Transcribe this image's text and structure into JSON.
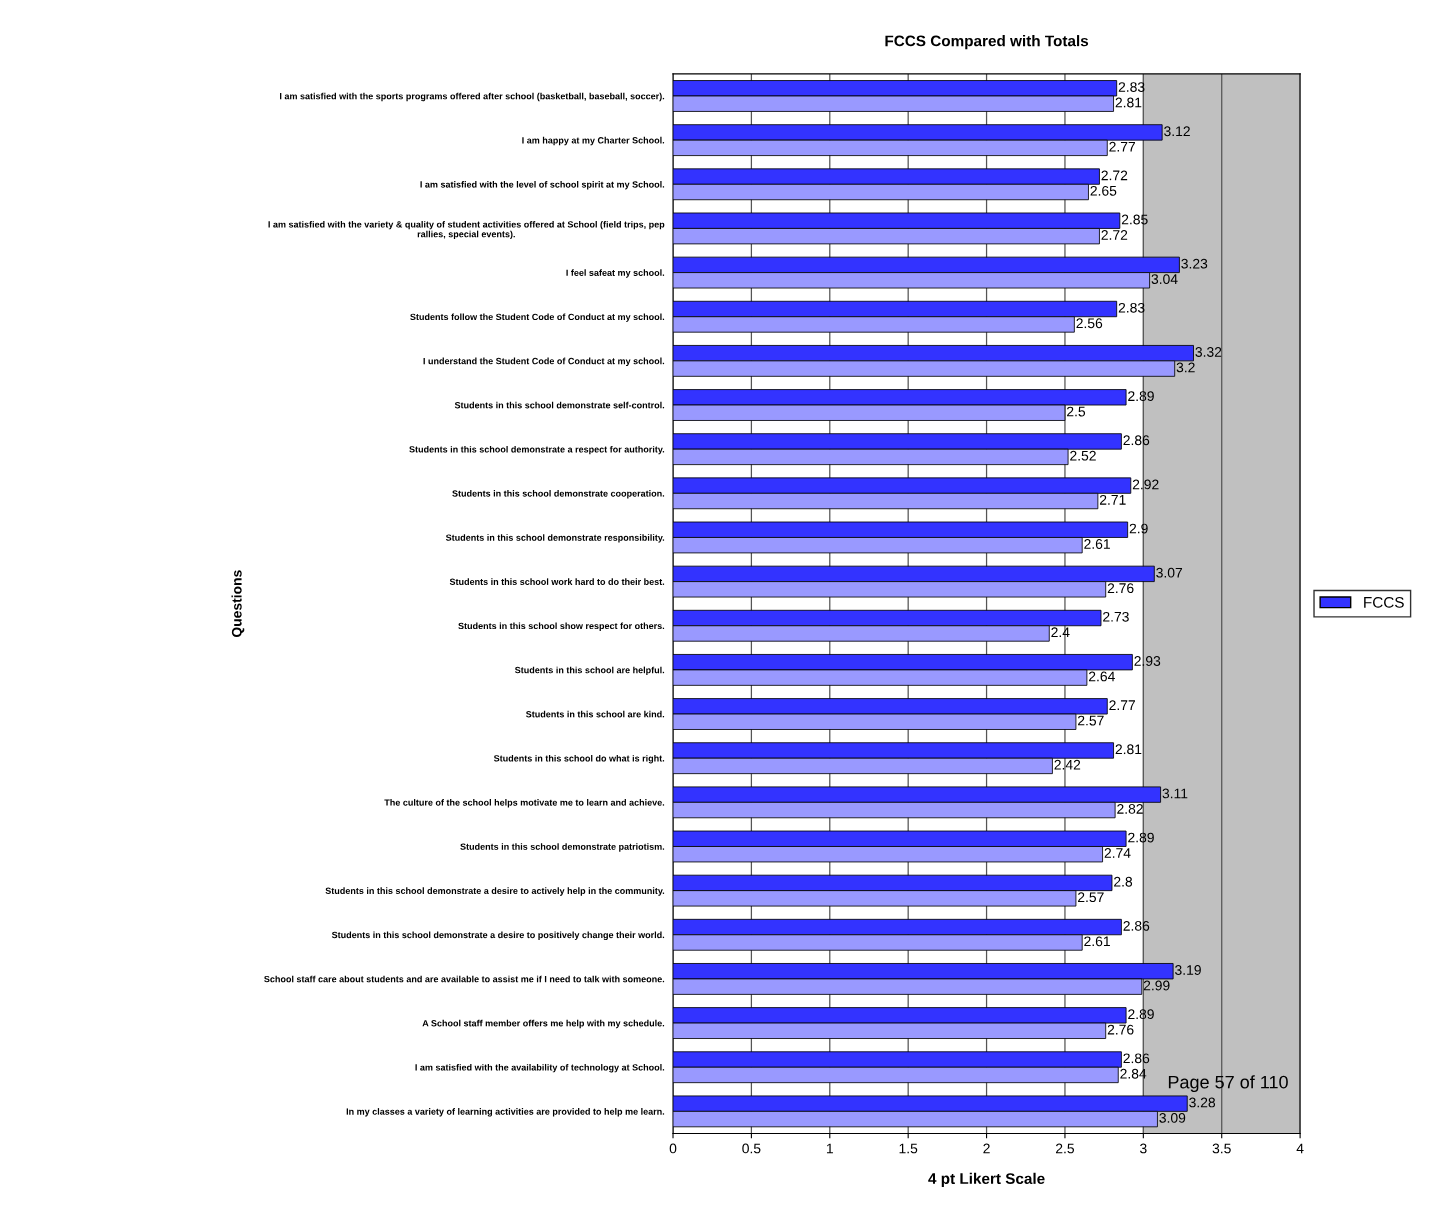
{
  "chart_data": {
    "type": "bar",
    "orientation": "horizontal",
    "title": "FCCS Compared with Totals",
    "xlabel": "4 pt Likert Scale",
    "ylabel": "Questions",
    "categories": [
      "I am satisfied with the sports programs offered after school (basketball, baseball, soccer).",
      "I am happy at my Charter School.",
      "I am satisfied with the level of school spirit at my School.",
      "I am satisfied with the variety & quality of student activities offered at School (field trips, pep\nrallies, special events).",
      "I feel safeat my school.",
      "Students follow the Student Code of Conduct at my school.",
      "I understand the Student Code of Conduct at my school.",
      "Students in this school demonstrate self-control.",
      "Students in this school demonstrate a respect for authority.",
      "Students in this school demonstrate cooperation.",
      "Students in this school demonstrate responsibility.",
      "Students in this school work hard to do their best.",
      "Students in this school show respect for others.",
      "Students in this school are helpful.",
      "Students in this school are kind.",
      "Students in this school do what is right.",
      "The culture of the school helps motivate me to learn and achieve.",
      "Students in this school demonstrate patriotism.",
      "Students in this school demonstrate a desire to actively help in the community.",
      "Students in this school demonstrate a desire to positively change their world.",
      "School staff care about students and are available to assist me if I need to talk with someone.",
      "A School staff member offers me help with my schedule.",
      "I am satisfied with the availability of technology at School.",
      "In my classes a variety of learning activities are provided to help me learn."
    ],
    "series": [
      {
        "name": "FCCS",
        "color": "#3333ff",
        "values": [
          2.83,
          3.12,
          2.72,
          2.85,
          3.23,
          2.83,
          3.32,
          2.89,
          2.86,
          2.92,
          2.9,
          3.07,
          2.73,
          2.93,
          2.77,
          2.81,
          3.11,
          2.89,
          2.8,
          2.86,
          3.19,
          2.89,
          2.86,
          3.28
        ]
      },
      {
        "color": "#9999ff",
        "values": [
          2.81,
          2.77,
          2.65,
          2.72,
          3.04,
          2.56,
          3.2,
          2.5,
          2.52,
          2.71,
          2.61,
          2.76,
          2.4,
          2.64,
          2.57,
          2.42,
          2.82,
          2.74,
          2.57,
          2.61,
          2.99,
          2.76,
          2.84,
          3.09
        ]
      }
    ],
    "xlim": [
      0,
      4
    ],
    "xticks": [
      0,
      0.5,
      1,
      1.5,
      2,
      2.5,
      3,
      3.5,
      4
    ],
    "bands": [
      {
        "axis": "x",
        "from": 3,
        "to": 4,
        "color": "#c0c0c0"
      }
    ],
    "grid": "x",
    "legend": "right",
    "data_labels": true,
    "annotations": [
      "Page 57 of 110"
    ]
  }
}
